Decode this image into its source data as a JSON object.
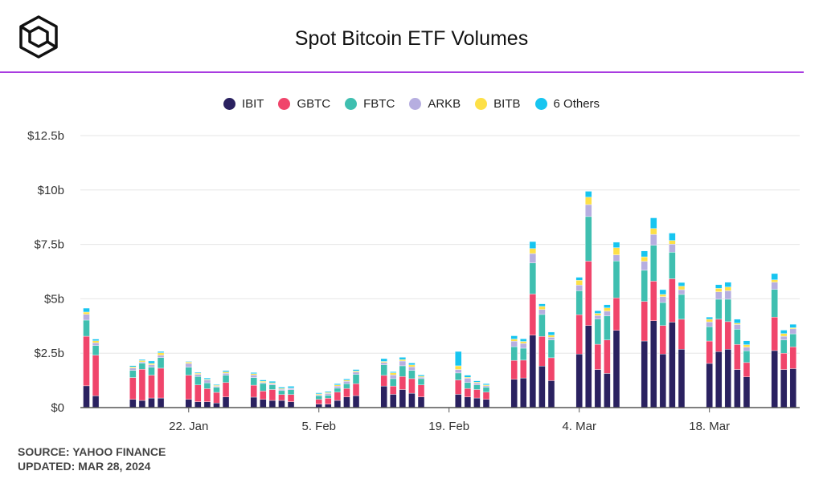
{
  "header": {
    "title": "Spot Bitcoin ETF Volumes",
    "logo": "cube-logo"
  },
  "footer": {
    "source": "SOURCE: YAHOO FINANCE",
    "updated": "UPDATED: MAR 28, 2024"
  },
  "chart_data": {
    "type": "bar",
    "stacked": true,
    "title": "Spot Bitcoin ETF Volumes",
    "xlabel": "",
    "ylabel": "",
    "ylim": [
      0,
      12.5
    ],
    "y_ticks": [
      {
        "value": 0,
        "label": "$0"
      },
      {
        "value": 2.5,
        "label": "$2.5b"
      },
      {
        "value": 5,
        "label": "$5b"
      },
      {
        "value": 7.5,
        "label": "$7.5b"
      },
      {
        "value": 10,
        "label": "$10b"
      },
      {
        "value": 12.5,
        "label": "$12.5b"
      }
    ],
    "x_ticks": [
      {
        "date": "2024-01-22",
        "label": "22. Jan"
      },
      {
        "date": "2024-02-05",
        "label": "5. Feb"
      },
      {
        "date": "2024-02-19",
        "label": "19. Feb"
      },
      {
        "date": "2024-03-04",
        "label": "4. Mar"
      },
      {
        "date": "2024-03-18",
        "label": "18. Mar"
      }
    ],
    "grid": true,
    "legend_position": "top",
    "unit": "USD billions",
    "dates": [
      "2024-01-11",
      "2024-01-12",
      "2024-01-16",
      "2024-01-17",
      "2024-01-18",
      "2024-01-19",
      "2024-01-22",
      "2024-01-23",
      "2024-01-24",
      "2024-01-25",
      "2024-01-26",
      "2024-01-29",
      "2024-01-30",
      "2024-01-31",
      "2024-02-01",
      "2024-02-02",
      "2024-02-05",
      "2024-02-06",
      "2024-02-07",
      "2024-02-08",
      "2024-02-09",
      "2024-02-12",
      "2024-02-13",
      "2024-02-14",
      "2024-02-15",
      "2024-02-16",
      "2024-02-20",
      "2024-02-21",
      "2024-02-22",
      "2024-02-23",
      "2024-02-26",
      "2024-02-27",
      "2024-02-28",
      "2024-02-29",
      "2024-03-01",
      "2024-03-04",
      "2024-03-05",
      "2024-03-06",
      "2024-03-07",
      "2024-03-08",
      "2024-03-11",
      "2024-03-12",
      "2024-03-13",
      "2024-03-14",
      "2024-03-15",
      "2024-03-18",
      "2024-03-19",
      "2024-03-20",
      "2024-03-21",
      "2024-03-22",
      "2024-03-25",
      "2024-03-26",
      "2024-03-27"
    ],
    "series": [
      {
        "name": "IBIT",
        "color": "#2a2160",
        "values": [
          1.0,
          0.54,
          0.38,
          0.33,
          0.44,
          0.44,
          0.38,
          0.27,
          0.27,
          0.21,
          0.49,
          0.48,
          0.38,
          0.33,
          0.33,
          0.27,
          0.16,
          0.16,
          0.33,
          0.49,
          0.55,
          0.99,
          0.61,
          0.83,
          0.66,
          0.49,
          0.61,
          0.49,
          0.44,
          0.38,
          1.3,
          1.36,
          3.33,
          1.91,
          1.24,
          2.46,
          3.77,
          1.75,
          1.57,
          3.55,
          3.06,
          3.99,
          2.46,
          3.93,
          2.68,
          2.03,
          2.57,
          2.68,
          1.75,
          1.41,
          2.62,
          1.75,
          1.79
        ]
      },
      {
        "name": "GBTC",
        "color": "#f0456b",
        "values": [
          2.28,
          1.87,
          1.0,
          1.43,
          1.05,
          1.37,
          1.11,
          0.77,
          0.6,
          0.49,
          0.66,
          0.55,
          0.38,
          0.5,
          0.27,
          0.33,
          0.22,
          0.27,
          0.38,
          0.39,
          0.55,
          0.49,
          0.38,
          0.6,
          0.67,
          0.55,
          0.66,
          0.39,
          0.39,
          0.33,
          0.87,
          0.82,
          1.89,
          1.36,
          1.05,
          1.81,
          2.96,
          1.16,
          1.54,
          1.49,
          1.82,
          1.82,
          1.31,
          1.99,
          1.38,
          1.03,
          1.49,
          1.27,
          1.15,
          0.66,
          1.54,
          0.75,
          1.0
        ]
      },
      {
        "name": "FBTC",
        "color": "#3fbfb0",
        "values": [
          0.74,
          0.44,
          0.33,
          0.28,
          0.37,
          0.49,
          0.37,
          0.39,
          0.27,
          0.23,
          0.34,
          0.35,
          0.35,
          0.21,
          0.18,
          0.22,
          0.17,
          0.14,
          0.18,
          0.22,
          0.43,
          0.49,
          0.34,
          0.49,
          0.38,
          0.29,
          0.32,
          0.27,
          0.21,
          0.23,
          0.63,
          0.55,
          1.43,
          1.01,
          0.82,
          1.1,
          2.05,
          1.16,
          1.1,
          1.7,
          1.43,
          1.65,
          1.06,
          1.22,
          1.14,
          0.66,
          0.92,
          1.03,
          0.7,
          0.54,
          1.27,
          0.61,
          0.6
        ]
      },
      {
        "name": "ARKB",
        "color": "#b6aee0",
        "values": [
          0.27,
          0.13,
          0.11,
          0.06,
          0.11,
          0.11,
          0.17,
          0.1,
          0.13,
          0.05,
          0.09,
          0.12,
          0.05,
          0.06,
          0.06,
          0.06,
          0.04,
          0.08,
          0.1,
          0.11,
          0.1,
          0.1,
          0.17,
          0.22,
          0.16,
          0.06,
          0.16,
          0.2,
          0.09,
          0.06,
          0.25,
          0.22,
          0.43,
          0.23,
          0.12,
          0.26,
          0.55,
          0.16,
          0.22,
          0.28,
          0.41,
          0.5,
          0.27,
          0.37,
          0.22,
          0.22,
          0.34,
          0.39,
          0.22,
          0.17,
          0.33,
          0.17,
          0.23
        ]
      },
      {
        "name": "BITB",
        "color": "#fde047",
        "values": [
          0.1,
          0.09,
          0.05,
          0.06,
          0.06,
          0.11,
          0.06,
          0.05,
          0.03,
          0.04,
          0.06,
          0.06,
          0.05,
          0.04,
          0.04,
          0.02,
          0.04,
          0.04,
          0.05,
          0.05,
          0.05,
          0.05,
          0.1,
          0.07,
          0.09,
          0.05,
          0.17,
          0.04,
          0.04,
          0.04,
          0.1,
          0.09,
          0.23,
          0.14,
          0.1,
          0.22,
          0.34,
          0.1,
          0.15,
          0.33,
          0.21,
          0.27,
          0.1,
          0.17,
          0.16,
          0.12,
          0.16,
          0.17,
          0.06,
          0.11,
          0.11,
          0.12,
          0.05
        ]
      },
      {
        "name": "6 Others",
        "color": "#17c5f0",
        "values": [
          0.18,
          0.08,
          0.06,
          0.05,
          0.11,
          0.06,
          0.03,
          0.04,
          0.06,
          0.04,
          0.06,
          0.05,
          0.06,
          0.07,
          0.06,
          0.08,
          0.05,
          0.05,
          0.06,
          0.06,
          0.07,
          0.13,
          0.05,
          0.1,
          0.09,
          0.06,
          0.66,
          0.1,
          0.06,
          0.06,
          0.15,
          0.12,
          0.32,
          0.12,
          0.14,
          0.14,
          0.27,
          0.12,
          0.15,
          0.25,
          0.27,
          0.49,
          0.22,
          0.34,
          0.17,
          0.1,
          0.17,
          0.22,
          0.18,
          0.18,
          0.29,
          0.16,
          0.16
        ]
      }
    ]
  }
}
